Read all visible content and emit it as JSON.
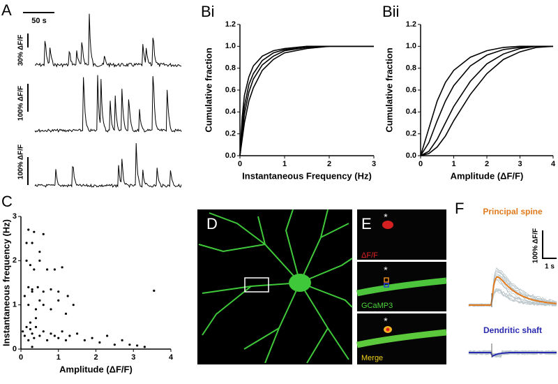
{
  "figure": {
    "panel_a": {
      "label": "A",
      "time_scale": "50 s",
      "scales": [
        "30% ΔF/F",
        "100% ΔF/F",
        "100% ΔF/F"
      ]
    },
    "panel_d": {
      "label": "D"
    },
    "panel_e": {
      "label": "E",
      "marker": "*",
      "channels": [
        "ΔF/F",
        "GCaMP3",
        "Merge"
      ]
    },
    "panel_f": {
      "label": "F",
      "traces": [
        "Principal spine",
        "Dendritic shaft"
      ],
      "amplitude_scale": "100% ΔF/F",
      "time_scale": "1 s"
    }
  },
  "chart_data": [
    {
      "type": "line",
      "label": "Bi",
      "x_label": "Instantaneous Frequency (Hz)",
      "y_label": "Cumulative fraction",
      "x": [
        0,
        0.05,
        0.1,
        0.2,
        0.3,
        0.5,
        0.75,
        1,
        1.5,
        2,
        3
      ],
      "series": [
        {
          "color": "#000000",
          "values": [
            0,
            0.25,
            0.45,
            0.65,
            0.75,
            0.87,
            0.94,
            0.97,
            0.99,
            1.0,
            1.0
          ]
        },
        {
          "color": "#000000",
          "values": [
            0,
            0.15,
            0.3,
            0.5,
            0.62,
            0.78,
            0.88,
            0.94,
            0.98,
            1.0,
            1.0
          ]
        },
        {
          "color": "#000000",
          "values": [
            0,
            0.35,
            0.55,
            0.72,
            0.82,
            0.91,
            0.96,
            0.98,
            1.0,
            1.0,
            1.0
          ]
        },
        {
          "color": "#000000",
          "values": [
            0,
            0.2,
            0.38,
            0.58,
            0.7,
            0.83,
            0.91,
            0.96,
            0.99,
            1.0,
            1.0
          ]
        }
      ],
      "xlim": [
        0,
        3
      ],
      "xticks": [
        0,
        1,
        2,
        3
      ],
      "ylim": [
        0,
        1.2
      ],
      "yticks": [
        {
          "value": 0,
          "label": "0.0"
        },
        {
          "value": 0.2,
          "label": "0.2"
        },
        {
          "value": 0.4,
          "label": "0.4"
        },
        {
          "value": 0.6,
          "label": "0.6"
        },
        {
          "value": 0.8,
          "label": "0.8"
        },
        {
          "value": 1,
          "label": "1.0"
        },
        {
          "value": 1.2,
          "label": "1.2"
        }
      ]
    },
    {
      "type": "line",
      "label": "Bii",
      "x_label": "Amplitude (ΔF/F)",
      "y_label": "Cumulative fraction",
      "x": [
        0,
        0.25,
        0.5,
        0.75,
        1,
        1.5,
        2,
        2.5,
        3,
        3.5,
        4
      ],
      "series": [
        {
          "color": "#000000",
          "values": [
            0,
            0.25,
            0.5,
            0.67,
            0.78,
            0.9,
            0.96,
            0.99,
            1,
            1,
            1
          ]
        },
        {
          "color": "#000000",
          "values": [
            0,
            0.12,
            0.32,
            0.5,
            0.64,
            0.82,
            0.92,
            0.97,
            0.99,
            1,
            1
          ]
        },
        {
          "color": "#000000",
          "values": [
            0,
            0.04,
            0.15,
            0.3,
            0.45,
            0.68,
            0.84,
            0.93,
            0.98,
            1,
            1
          ]
        },
        {
          "color": "#000000",
          "values": [
            0,
            0.02,
            0.08,
            0.18,
            0.32,
            0.56,
            0.75,
            0.88,
            0.95,
            0.99,
            1
          ]
        }
      ],
      "xlim": [
        0,
        4
      ],
      "xticks": [
        0,
        1,
        2,
        3,
        4
      ],
      "ylim": [
        0,
        1.2
      ],
      "yticks": [
        {
          "value": 0,
          "label": "0.0"
        },
        {
          "value": 0.2,
          "label": "0.2"
        },
        {
          "value": 0.4,
          "label": "0.4"
        },
        {
          "value": 0.6,
          "label": "0.6"
        },
        {
          "value": 0.8,
          "label": "0.8"
        },
        {
          "value": 1,
          "label": "1.0"
        },
        {
          "value": 1.2,
          "label": "1.2"
        }
      ]
    },
    {
      "type": "scatter",
      "label": "C",
      "x_label": "Amplitude (ΔF/F)",
      "y_label": "Instantaneous frequency (Hz)",
      "color": "#000000",
      "x": [
        0.05,
        0.1,
        0.15,
        0.2,
        0.25,
        0.3,
        0.35,
        0.4,
        0.5,
        0.6,
        0.7,
        0.8,
        0.9,
        1.0,
        1.1,
        1.2,
        1.3,
        1.5,
        1.7,
        1.9,
        2.1,
        2.3,
        2.5,
        2.7,
        2.9,
        3.1,
        3.3,
        3.55,
        0.1,
        0.2,
        0.3,
        0.4,
        0.5,
        0.6,
        0.8,
        1.0,
        1.2,
        1.4,
        0.15,
        0.25,
        0.35,
        0.5,
        0.7,
        0.9,
        1.1,
        0.2,
        0.3,
        0.45,
        0.6,
        0.8,
        1.0,
        1.25,
        0.15,
        0.3,
        0.5,
        0.2,
        0.35,
        0.6,
        0.25,
        0.4,
        0.3
      ],
      "values": [
        0.4,
        0.3,
        0.5,
        0.2,
        0.45,
        0.35,
        0.25,
        0.5,
        0.3,
        0.4,
        0.2,
        0.35,
        0.3,
        0.25,
        0.4,
        0.2,
        0.3,
        0.35,
        0.2,
        0.25,
        0.15,
        0.3,
        0.1,
        0.2,
        0.1,
        0.08,
        0.05,
        1.32,
        1.2,
        1.0,
        1.3,
        0.9,
        1.1,
        1.0,
        0.9,
        1.1,
        0.8,
        1.0,
        2.0,
        1.9,
        1.8,
        2.0,
        1.8,
        1.8,
        1.85,
        1.4,
        1.35,
        1.4,
        1.3,
        1.35,
        1.3,
        1.2,
        2.4,
        2.4,
        2.2,
        2.7,
        2.65,
        2.6,
        0.6,
        0.7,
        0.05
      ],
      "xlim": [
        0,
        4
      ],
      "xticks": [
        0,
        1,
        2,
        3,
        4
      ],
      "ylim": [
        0,
        3
      ],
      "yticks": [
        0,
        1,
        2,
        3
      ]
    }
  ]
}
